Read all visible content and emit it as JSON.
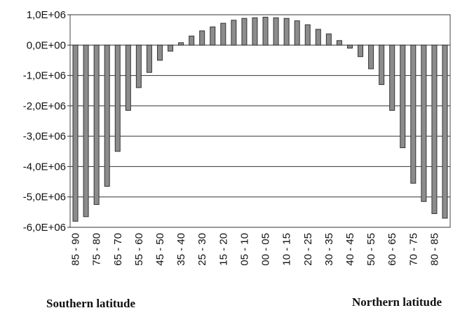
{
  "chart_data": {
    "type": "bar",
    "categories": [
      "85 - 90",
      null,
      "75 - 80",
      null,
      "65 - 70",
      null,
      "55 - 60",
      null,
      "45 - 50",
      null,
      "35 - 40",
      null,
      "25 - 30",
      null,
      "15 - 20",
      null,
      "05 - 10",
      null,
      "00 - 05",
      null,
      "10 - 15",
      null,
      "20 - 25",
      null,
      "30 - 35",
      null,
      "40 - 45",
      null,
      "50 - 55",
      null,
      "60 - 65",
      null,
      "70 - 75",
      null,
      "80 - 85",
      null
    ],
    "values": [
      -5800000,
      -5650000,
      -5250000,
      -4650000,
      -3500000,
      -2150000,
      -1400000,
      -900000,
      -500000,
      -200000,
      80000,
      300000,
      470000,
      600000,
      720000,
      820000,
      880000,
      900000,
      920000,
      900000,
      880000,
      800000,
      670000,
      520000,
      370000,
      150000,
      -100000,
      -380000,
      -780000,
      -1300000,
      -2150000,
      -3380000,
      -4550000,
      -5150000,
      -5550000,
      -5700000
    ],
    "color": "#8c8c8c",
    "ylim": [
      -6000000,
      1000000
    ],
    "yticks": [
      {
        "value": -6000000,
        "label": "-6,0E+06"
      },
      {
        "value": -5000000,
        "label": "-5,0E+06"
      },
      {
        "value": -4000000,
        "label": "-4,0E+06"
      },
      {
        "value": -3000000,
        "label": "-3,0E+06"
      },
      {
        "value": -2000000,
        "label": "-2,0E+06"
      },
      {
        "value": -1000000,
        "label": "-1,0E+06"
      },
      {
        "value": 0,
        "label": "0,0E+00"
      },
      {
        "value": 1000000,
        "label": "1,0E+06"
      }
    ],
    "grid": true,
    "annotations": [
      "Southern latitude",
      "Northern latitude"
    ]
  }
}
